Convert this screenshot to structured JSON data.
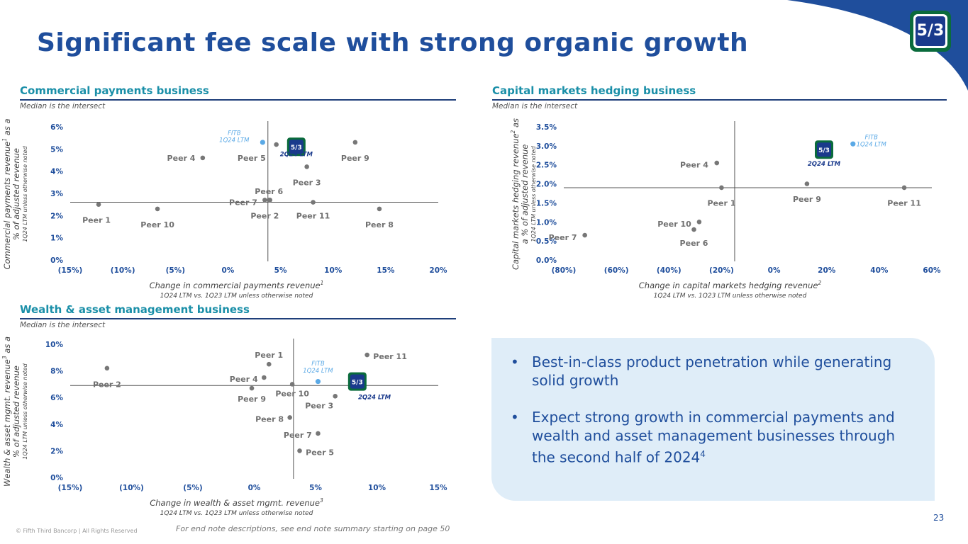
{
  "page": {
    "title": "Significant fee scale with strong organic growth",
    "logo_text": "5/3",
    "page_number": "23",
    "copyright": "© Fifth Third Bancorp | All Rights Reserved",
    "endnote": "For end note descriptions, see end note summary starting on page 50",
    "colors": {
      "title": "#1f4e9c",
      "section": "#1a8fa8",
      "rule": "#1f3f7a",
      "peer_dot": "#777777",
      "fitb_dot": "#5aa9e6",
      "callout_bg": "#dfedf8",
      "logo_green": "#0a6b3c",
      "logo_blue": "#1a3a8c"
    }
  },
  "sections": {
    "commercial": {
      "title": "Commercial payments business",
      "note": "Median is the intersect"
    },
    "capital": {
      "title": "Capital markets hedging business",
      "note": "Median is the intersect"
    },
    "wealth": {
      "title": "Wealth & asset management business",
      "note": "Median is the intersect"
    }
  },
  "bullets": [
    {
      "text": "Best-in-class product penetration while generating solid growth",
      "sup": ""
    },
    {
      "text": "Expect strong growth in commercial payments and wealth and asset management businesses through the second half of 2024",
      "sup": "4"
    }
  ],
  "chart_data": [
    {
      "id": "commercial",
      "type": "scatter",
      "title": "Commercial payments business",
      "xlabel": "Change in commercial payments revenue",
      "xlabel_sup": "1",
      "xsub": "1Q24 LTM vs. 1Q23 LTM unless otherwise noted",
      "ylabel_1": "Commercial payments revenue",
      "ylabel_1_sup": "1",
      "ylabel_1_tail": " as a",
      "ylabel_2": "% of adjusted revenue",
      "ylabel_3": "1Q24 LTM unless otherwise noted",
      "xlim": [
        -15,
        20
      ],
      "ylim": [
        0,
        6
      ],
      "xticks": [
        -15,
        -10,
        -5,
        0,
        5,
        10,
        15,
        20
      ],
      "xtick_labels": [
        "(15%)",
        "(10%)",
        "(5%)",
        "0%",
        "5%",
        "10%",
        "15%",
        "20%"
      ],
      "yticks": [
        0,
        1,
        2,
        3,
        4,
        5,
        6
      ],
      "ytick_labels": [
        "0%",
        "1%",
        "2%",
        "3%",
        "4%",
        "5%",
        "6%"
      ],
      "median": {
        "x": 3.8,
        "y": 2.6
      },
      "points": [
        {
          "name": "Peer 1",
          "x": -12.3,
          "y": 2.5,
          "lx": -12.5,
          "ly": 1.8,
          "anchor": "middle"
        },
        {
          "name": "Peer 10",
          "x": -6.7,
          "y": 2.3,
          "lx": -6.7,
          "ly": 1.6,
          "anchor": "middle"
        },
        {
          "name": "Peer 4",
          "x": -2.4,
          "y": 4.6,
          "lx": -3.1,
          "ly": 4.6,
          "anchor": "end"
        },
        {
          "name": "Peer 5",
          "x": 4.6,
          "y": 5.2,
          "lx": 3.6,
          "ly": 4.6,
          "anchor": "end"
        },
        {
          "name": "Peer 9",
          "x": 12.1,
          "y": 5.3,
          "lx": 12.1,
          "ly": 4.6,
          "anchor": "middle"
        },
        {
          "name": "Peer 3",
          "x": 7.5,
          "y": 4.2,
          "lx": 7.5,
          "ly": 3.5,
          "anchor": "middle"
        },
        {
          "name": "Peer 6",
          "x": 3.9,
          "y": 2.7,
          "lx": 3.9,
          "ly": 3.1,
          "anchor": "middle"
        },
        {
          "name": "Peer 7",
          "x": 3.5,
          "y": 2.7,
          "lx": 2.8,
          "ly": 2.6,
          "anchor": "end"
        },
        {
          "name": "Peer 2",
          "x": 4.0,
          "y": 2.7,
          "lx": 3.5,
          "ly": 2.0,
          "anchor": "middle"
        },
        {
          "name": "Peer 11",
          "x": 8.1,
          "y": 2.6,
          "lx": 8.1,
          "ly": 2.0,
          "anchor": "middle"
        },
        {
          "name": "Peer 8",
          "x": 14.4,
          "y": 2.3,
          "lx": 14.4,
          "ly": 1.6,
          "anchor": "middle"
        }
      ],
      "fitb": {
        "x": 3.3,
        "y": 5.3,
        "label_1": "FITB",
        "label_2": "1Q24 LTM",
        "lx": 0.6,
        "ly": 5.5
      },
      "fitb_2q": {
        "x": 6.5,
        "y": 5.1,
        "label": "2Q24 LTM",
        "lx": 6.5,
        "ly": 4.8
      }
    },
    {
      "id": "capital",
      "type": "scatter",
      "title": "Capital markets hedging business",
      "xlabel": "Change in capital markets hedging revenue",
      "xlabel_sup": "2",
      "xsub": "1Q24 LTM vs. 1Q23 LTM unless otherwise noted",
      "ylabel_1": "Capital markets hedging revenue",
      "ylabel_1_sup": "2",
      "ylabel_1_tail": " as",
      "ylabel_2": "a % of adjusted revenue",
      "ylabel_3": "1Q24 LTM unless otherwise noted",
      "xlim": [
        -80,
        60
      ],
      "ylim": [
        0,
        3.5
      ],
      "xticks": [
        -80,
        -60,
        -40,
        -20,
        0,
        20,
        40,
        60
      ],
      "xtick_labels": [
        "(80%)",
        "(60%)",
        "(40%)",
        "(20%)",
        "0%",
        "20%",
        "40%",
        "60%"
      ],
      "yticks": [
        0,
        0.5,
        1,
        1.5,
        2,
        2.5,
        3,
        3.5
      ],
      "ytick_labels": [
        "0.0%",
        "0.5%",
        "1.0%",
        "1.5%",
        "2.0%",
        "2.5%",
        "3.0%",
        "3.5%"
      ],
      "median": {
        "x": -15,
        "y": 1.9
      },
      "points": [
        {
          "name": "Peer 7",
          "x": -72,
          "y": 0.65,
          "lx": -75,
          "ly": 0.6,
          "anchor": "end"
        },
        {
          "name": "Peer 10",
          "x": -28.5,
          "y": 1.0,
          "lx": -31.5,
          "ly": 0.95,
          "anchor": "end"
        },
        {
          "name": "Peer 6",
          "x": -30.5,
          "y": 0.8,
          "lx": -30.5,
          "ly": 0.45,
          "anchor": "middle"
        },
        {
          "name": "Peer 4",
          "x": -21.8,
          "y": 2.55,
          "lx": -25,
          "ly": 2.5,
          "anchor": "end"
        },
        {
          "name": "Peer 1",
          "x": -20,
          "y": 1.9,
          "lx": -20,
          "ly": 1.5,
          "anchor": "middle"
        },
        {
          "name": "Peer 9",
          "x": 12.5,
          "y": 2.0,
          "lx": 12.5,
          "ly": 1.6,
          "anchor": "middle"
        },
        {
          "name": "Peer 11",
          "x": 49.5,
          "y": 1.9,
          "lx": 49.5,
          "ly": 1.5,
          "anchor": "middle"
        }
      ],
      "fitb": {
        "x": 30,
        "y": 3.05,
        "label_1": "FITB",
        "label_2": "1Q24 LTM",
        "lx": 37,
        "ly": 3.1
      },
      "fitb_2q": {
        "x": 19,
        "y": 2.9,
        "label": "2Q24 LTM",
        "lx": 19,
        "ly": 2.55
      }
    },
    {
      "id": "wealth",
      "type": "scatter",
      "title": "Wealth & asset management business",
      "xlabel": "Change in wealth & asset mgmt. revenue",
      "xlabel_sup": "3",
      "xsub": "1Q24 LTM vs. 1Q23 LTM unless otherwise noted",
      "ylabel_1": "Wealth & asset mgmt. revenue",
      "ylabel_1_sup": "3",
      "ylabel_1_tail": " as a",
      "ylabel_2": "% of adjusted revenue",
      "ylabel_3": "1Q24 LTM unless otherwise noted",
      "xlim": [
        -15,
        15
      ],
      "ylim": [
        0,
        10
      ],
      "xticks": [
        -15,
        -10,
        -5,
        0,
        5,
        10,
        15
      ],
      "xtick_labels": [
        "(15%)",
        "(10%)",
        "(5%)",
        "0%",
        "5%",
        "10%",
        "15%"
      ],
      "yticks": [
        0,
        2,
        4,
        6,
        8,
        10
      ],
      "ytick_labels": [
        "0%",
        "2%",
        "4%",
        "6%",
        "8%",
        "10%"
      ],
      "median": {
        "x": 3.2,
        "y": 6.9
      },
      "points": [
        {
          "name": "Peer 2",
          "x": -12,
          "y": 8.2,
          "lx": -12,
          "ly": 7.0,
          "anchor": "middle"
        },
        {
          "name": "Peer 1",
          "x": 1.2,
          "y": 8.5,
          "lx": 1.2,
          "ly": 9.2,
          "anchor": "middle"
        },
        {
          "name": "Peer 4",
          "x": 0.8,
          "y": 7.5,
          "lx": 0.3,
          "ly": 7.4,
          "anchor": "end"
        },
        {
          "name": "Peer 9",
          "x": -0.2,
          "y": 6.7,
          "lx": -0.2,
          "ly": 5.9,
          "anchor": "middle"
        },
        {
          "name": "Peer 10",
          "x": 3.1,
          "y": 7.0,
          "lx": 3.1,
          "ly": 6.3,
          "anchor": "middle"
        },
        {
          "name": "Peer 11",
          "x": 9.2,
          "y": 9.2,
          "lx": 9.7,
          "ly": 9.1,
          "anchor": "start"
        },
        {
          "name": "Peer 3",
          "x": 6.6,
          "y": 6.1,
          "lx": 5.3,
          "ly": 5.4,
          "anchor": "middle"
        },
        {
          "name": "Peer 8",
          "x": 2.9,
          "y": 4.5,
          "lx": 2.4,
          "ly": 4.4,
          "anchor": "end"
        },
        {
          "name": "Peer 7",
          "x": 5.2,
          "y": 3.3,
          "lx": 4.7,
          "ly": 3.2,
          "anchor": "end"
        },
        {
          "name": "Peer 5",
          "x": 3.7,
          "y": 2.0,
          "lx": 4.2,
          "ly": 1.9,
          "anchor": "start"
        }
      ],
      "fitb": {
        "x": 5.2,
        "y": 7.2,
        "label_1": "FITB",
        "label_2": "1Q24 LTM",
        "lx": 5.2,
        "ly": 8.2
      },
      "fitb_2q": {
        "x": 8.4,
        "y": 7.2,
        "label": "2Q24 LTM",
        "lx": 9.8,
        "ly": 6.1
      }
    }
  ]
}
